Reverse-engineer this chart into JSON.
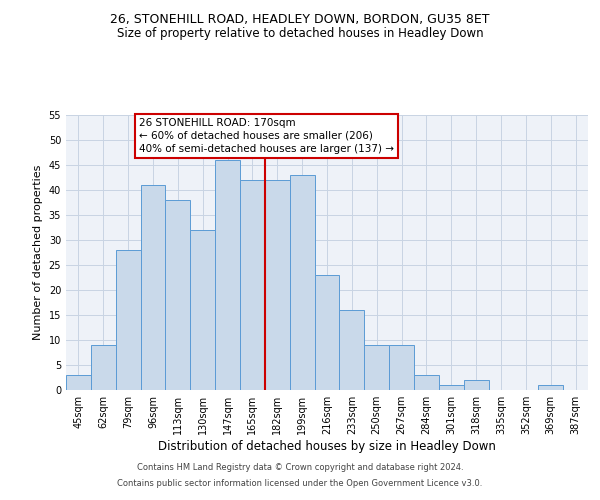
{
  "title": "26, STONEHILL ROAD, HEADLEY DOWN, BORDON, GU35 8ET",
  "subtitle": "Size of property relative to detached houses in Headley Down",
  "xlabel": "Distribution of detached houses by size in Headley Down",
  "ylabel": "Number of detached properties",
  "footer1": "Contains HM Land Registry data © Crown copyright and database right 2024.",
  "footer2": "Contains public sector information licensed under the Open Government Licence v3.0.",
  "annotation_line1": "26 STONEHILL ROAD: 170sqm",
  "annotation_line2": "← 60% of detached houses are smaller (206)",
  "annotation_line3": "40% of semi-detached houses are larger (137) →",
  "bar_labels": [
    "45sqm",
    "62sqm",
    "79sqm",
    "96sqm",
    "113sqm",
    "130sqm",
    "147sqm",
    "165sqm",
    "182sqm",
    "199sqm",
    "216sqm",
    "233sqm",
    "250sqm",
    "267sqm",
    "284sqm",
    "301sqm",
    "318sqm",
    "335sqm",
    "352sqm",
    "369sqm",
    "387sqm"
  ],
  "bar_values": [
    3,
    9,
    28,
    41,
    38,
    32,
    46,
    42,
    42,
    43,
    23,
    16,
    9,
    9,
    3,
    1,
    2,
    0,
    0,
    1,
    0
  ],
  "bar_color": "#c9d9ea",
  "bar_edge_color": "#5b9bd5",
  "red_line_index": 7,
  "red_line_color": "#cc0000",
  "grid_color": "#c8d4e3",
  "background_color": "#eef2f8",
  "annotation_box_color": "#cc0000",
  "ylim": [
    0,
    55
  ],
  "yticks": [
    0,
    5,
    10,
    15,
    20,
    25,
    30,
    35,
    40,
    45,
    50,
    55
  ],
  "title_fontsize": 9,
  "subtitle_fontsize": 8.5,
  "ylabel_fontsize": 8,
  "xlabel_fontsize": 8.5,
  "tick_fontsize": 7,
  "annotation_fontsize": 7.5,
  "footer_fontsize": 6
}
